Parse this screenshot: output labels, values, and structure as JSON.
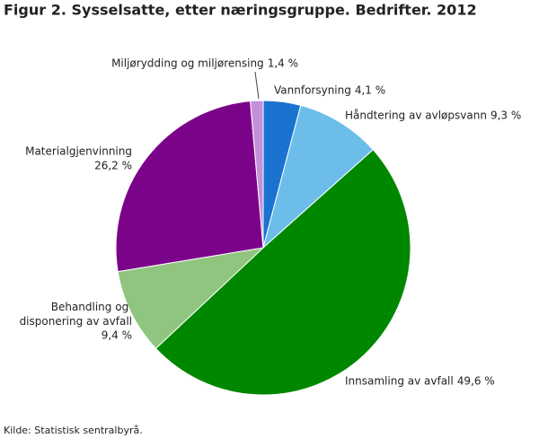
{
  "chart_data": {
    "type": "pie",
    "title": "Figur 2. Sysselsatte, etter næringsgruppe. Bedrifter. 2012",
    "categories": [
      "Vannforsyning",
      "Håndtering av avløpsvann",
      "Innsamling av avfall",
      "Behandling og disponering av avfall",
      "Materialgjenvinning",
      "Miljørydding og miljørensing"
    ],
    "values": [
      4.1,
      9.3,
      49.6,
      9.4,
      26.2,
      1.4
    ],
    "value_labels": [
      "4,1 %",
      "9,3 %",
      "49,6 %",
      "9,4 %",
      "26,2 %",
      "1,4 %"
    ],
    "colors": [
      "#1a73d0",
      "#6cbdea",
      "#008700",
      "#90c57f",
      "#7b0389",
      "#c58fdb"
    ],
    "source": "Kilde: Statistisk sentralbyrå."
  }
}
